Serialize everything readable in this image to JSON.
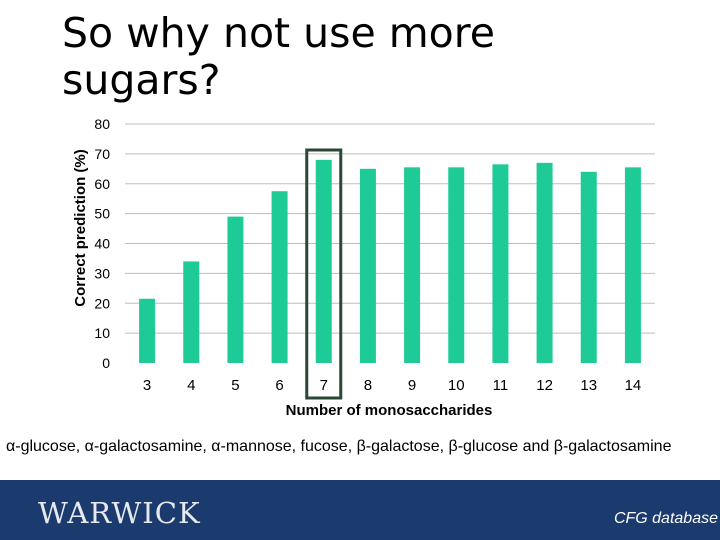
{
  "slide": {
    "title": "So why not use more sugars?",
    "caption": "α-glucose, α-galactosamine, α-mannose, fucose, β-galactose, β-glucose and β-galactosamine",
    "logo": "WARWICK",
    "source": "CFG database"
  },
  "colors": {
    "bar": "#1ecb96",
    "highlight": "#2b4735",
    "grid": "#bdbdbd",
    "footer": "#1b3b6f"
  },
  "chart_data": {
    "type": "bar",
    "categories": [
      "3",
      "4",
      "5",
      "6",
      "7",
      "8",
      "9",
      "10",
      "11",
      "12",
      "13",
      "14"
    ],
    "values": [
      21.5,
      34,
      49,
      57.5,
      68,
      65,
      65.5,
      65.5,
      66.5,
      67,
      64,
      65.5
    ],
    "xlabel": "Number of monosaccharides",
    "ylabel": "Correct prediction (%)",
    "ylim": [
      0,
      80
    ],
    "yticks": [
      0,
      10,
      20,
      30,
      40,
      50,
      60,
      70,
      80
    ],
    "grid": true,
    "highlight_category": "7"
  }
}
